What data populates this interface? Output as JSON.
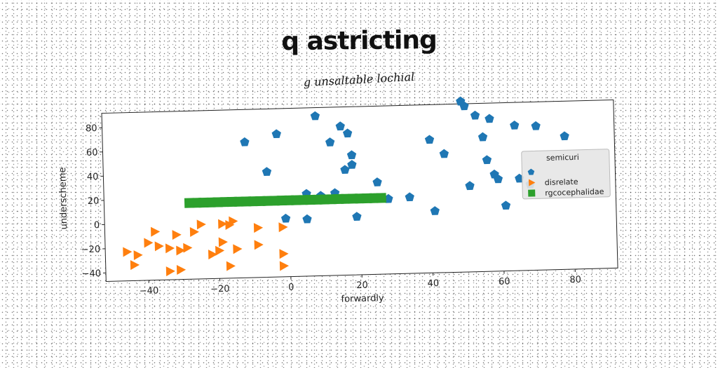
{
  "title": "q astricting",
  "subtitle": "g unsaltable lochial",
  "chart_data": {
    "type": "scatter",
    "title": "q astricting",
    "subtitle": "g unsaltable lochial",
    "xlabel": "forwardly",
    "ylabel": "underscheme",
    "xlim": [
      -52,
      92
    ],
    "ylim": [
      -47,
      92
    ],
    "xticks": [
      -40,
      -20,
      0,
      20,
      40,
      60,
      80
    ],
    "yticks": [
      -40,
      -20,
      0,
      20,
      40,
      60,
      80
    ],
    "grid": false,
    "legend": {
      "title": "semicuri",
      "placement": "right",
      "entries": [
        "",
        "disrelate",
        "rgcocephalidae"
      ]
    },
    "series": [
      {
        "name": "",
        "marker": "pentagon",
        "color": "#1f77b4",
        "points": [
          [
            -12,
            65
          ],
          [
            -3,
            71
          ],
          [
            -6,
            40
          ],
          [
            8,
            85
          ],
          [
            12,
            63
          ],
          [
            15,
            76
          ],
          [
            17,
            70
          ],
          [
            18,
            52
          ],
          [
            18,
            44
          ],
          [
            16,
            40
          ],
          [
            5,
            21
          ],
          [
            9,
            19
          ],
          [
            13,
            21
          ],
          [
            5,
            0
          ],
          [
            -1,
            1
          ],
          [
            19,
            1
          ],
          [
            25,
            29
          ],
          [
            24,
            16
          ],
          [
            28,
            15
          ],
          [
            34,
            16
          ],
          [
            40,
            63
          ],
          [
            44,
            51
          ],
          [
            41,
            4
          ],
          [
            49,
            94
          ],
          [
            50,
            90
          ],
          [
            53,
            82
          ],
          [
            57,
            79
          ],
          [
            55,
            64
          ],
          [
            56,
            45
          ],
          [
            58,
            33
          ],
          [
            59,
            29
          ],
          [
            51,
            24
          ],
          [
            61,
            7
          ],
          [
            64,
            73
          ],
          [
            70,
            72
          ],
          [
            78,
            63
          ],
          [
            65,
            29
          ],
          [
            68,
            24
          ]
        ]
      },
      {
        "name": "disrelate",
        "marker": "triangle-right",
        "color": "#ff7f0e",
        "points": [
          [
            -38,
            -7
          ],
          [
            -32,
            -10
          ],
          [
            -27,
            -8
          ],
          [
            -25,
            -2
          ],
          [
            -19,
            -2
          ],
          [
            -17,
            -3
          ],
          [
            -16,
            0
          ],
          [
            -9,
            -6
          ],
          [
            -2,
            -6
          ],
          [
            -40,
            -16
          ],
          [
            -37,
            -19
          ],
          [
            -34,
            -21
          ],
          [
            -31,
            -23
          ],
          [
            -29,
            -21
          ],
          [
            -19,
            -17
          ],
          [
            -22,
            -27
          ],
          [
            -20,
            -24
          ],
          [
            -15,
            -23
          ],
          [
            -9,
            -20
          ],
          [
            -2,
            -28
          ],
          [
            -46,
            -23
          ],
          [
            -43,
            -26
          ],
          [
            -44,
            -34
          ],
          [
            -34,
            -40
          ],
          [
            -31,
            -39
          ],
          [
            -17,
            -37
          ],
          [
            -2,
            -38
          ]
        ]
      },
      {
        "name": "rgcocephalidae",
        "marker": "square",
        "color": "#2ca02c",
        "points": [
          [
            -28,
            16
          ],
          [
            -26,
            16
          ],
          [
            -24,
            16
          ],
          [
            -22,
            16
          ],
          [
            -20,
            16
          ],
          [
            -18,
            16
          ],
          [
            -16,
            16
          ],
          [
            -14,
            16
          ],
          [
            -12,
            16
          ],
          [
            -10,
            16
          ],
          [
            -8,
            16
          ],
          [
            -6,
            16
          ],
          [
            -4,
            16
          ],
          [
            -2,
            16
          ],
          [
            0,
            16
          ],
          [
            2,
            16
          ],
          [
            4,
            16
          ],
          [
            6,
            16
          ],
          [
            8,
            16
          ],
          [
            10,
            16
          ],
          [
            12,
            16
          ],
          [
            14,
            16
          ],
          [
            16,
            16
          ],
          [
            18,
            16
          ],
          [
            20,
            16
          ],
          [
            22,
            16
          ],
          [
            24,
            16
          ],
          [
            26,
            16
          ]
        ]
      }
    ]
  }
}
